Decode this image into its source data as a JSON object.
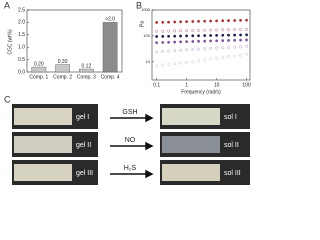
{
  "panels": [
    "A",
    "B",
    "C"
  ],
  "chart_data": [
    {
      "type": "bar",
      "ylabel": "CGC (wt%)",
      "categories": [
        "Comp. 1",
        "Comp. 2",
        "Comp. 3",
        "Comp. 4"
      ],
      "values": [
        0.2,
        0.3,
        0.12,
        2.0
      ],
      "value_labels": [
        "0.20",
        "0.30",
        "0.12",
        ">2.0"
      ],
      "colors": [
        "#c8c8c8",
        "#c8c8c8",
        "#c8c8c8",
        "#8c8c8c"
      ],
      "ylim": [
        0,
        2.5
      ],
      "yticks": [
        {
          "value": 0,
          "label": "0.0"
        },
        {
          "value": 0.5,
          "label": "0.5"
        },
        {
          "value": 1.0,
          "label": "1.0"
        },
        {
          "value": 1.5,
          "label": "1.5"
        },
        {
          "value": 2.0,
          "label": "2.0"
        },
        {
          "value": 2.5,
          "label": "2.5"
        }
      ]
    },
    {
      "type": "scatter",
      "xlabel": "Frequency (rad/s)",
      "ylabel": "Pa",
      "xscale": "log",
      "yscale": "log",
      "x": [
        0.1,
        0.16,
        0.25,
        0.4,
        0.63,
        1,
        1.6,
        2.5,
        4,
        6.3,
        10,
        16,
        25,
        40,
        63,
        100
      ],
      "xlim": [
        0.07,
        130
      ],
      "xticks": [
        0.1,
        1,
        10,
        100
      ],
      "ylim": [
        2,
        1000
      ],
      "yticks": [
        10,
        100,
        1000
      ],
      "series": [
        {
          "color": "#b03030",
          "filled": true,
          "values": [
            330,
            335,
            340,
            345,
            350,
            355,
            360,
            365,
            370,
            375,
            380,
            385,
            390,
            395,
            400,
            405
          ]
        },
        {
          "color": "#c07070",
          "filled": false,
          "values": [
            150,
            152,
            154,
            156,
            158,
            160,
            162,
            164,
            166,
            168,
            170,
            172,
            174,
            176,
            178,
            180
          ]
        },
        {
          "color": "#1c1c4c",
          "filled": true,
          "values": [
            95,
            96,
            97,
            98,
            99,
            100,
            101,
            102,
            103,
            104,
            105,
            106,
            107,
            108,
            109,
            110
          ]
        },
        {
          "color": "#8050a0",
          "filled": true,
          "values": [
            55,
            56,
            57,
            58,
            59,
            60,
            61,
            62,
            63,
            64,
            65,
            66,
            67,
            68,
            69,
            70
          ]
        },
        {
          "color": "#b8a0d0",
          "filled": false,
          "values": [
            24,
            25,
            26,
            27,
            28,
            29,
            30,
            31,
            32,
            33,
            34,
            35,
            36,
            37,
            38,
            40
          ]
        },
        {
          "color": "#c8c8d8",
          "filled": false,
          "values": [
            7,
            7.5,
            8,
            8.5,
            9,
            9.5,
            10,
            11,
            12,
            13,
            14,
            15,
            16,
            17,
            18,
            20
          ]
        }
      ]
    }
  ],
  "photos": {
    "left": [
      "gel I",
      "gel II",
      "gel III"
    ],
    "stimuli": [
      "GSH",
      "NO",
      "H₂S"
    ],
    "right": [
      "sol I",
      "sol II",
      "sol III"
    ]
  }
}
